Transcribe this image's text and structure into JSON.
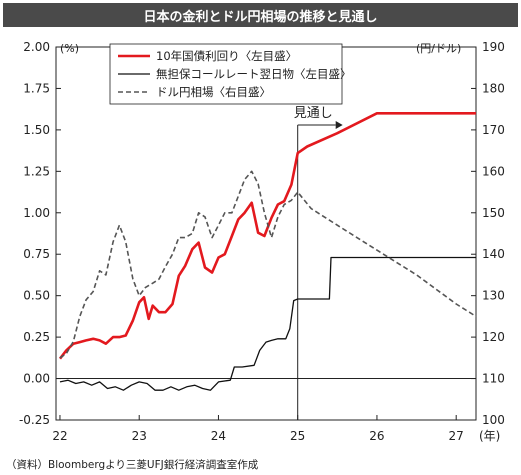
{
  "title": "日本の金利とドル円相場の推移と見通し",
  "source": "（資料）Bloombergより三菱UFJ銀行経済調査室作成",
  "chart_data": {
    "type": "line",
    "left_unit": "(%)",
    "right_unit": "(円/ドル)",
    "year_unit": "(年)",
    "forecast_label": "見通し",
    "forecast_start": 25.0,
    "xlim": [
      21.95,
      27.25
    ],
    "ylim_left": [
      -0.25,
      2.0
    ],
    "ylim_right": [
      100,
      190
    ],
    "x_ticks": [
      {
        "v": 22,
        "label": "22"
      },
      {
        "v": 23,
        "label": "23"
      },
      {
        "v": 24,
        "label": "24"
      },
      {
        "v": 25,
        "label": "25"
      },
      {
        "v": 26,
        "label": "26"
      },
      {
        "v": 27,
        "label": "27"
      }
    ],
    "y_left_ticks": [
      {
        "v": -0.25,
        "label": "-0.25"
      },
      {
        "v": 0,
        "label": "0.00"
      },
      {
        "v": 0.25,
        "label": "0.25"
      },
      {
        "v": 0.5,
        "label": "0.50"
      },
      {
        "v": 0.75,
        "label": "0.75"
      },
      {
        "v": 1.0,
        "label": "1.00"
      },
      {
        "v": 1.25,
        "label": "1.25"
      },
      {
        "v": 1.5,
        "label": "1.50"
      },
      {
        "v": 1.75,
        "label": "1.75"
      },
      {
        "v": 2.0,
        "label": "2.00"
      }
    ],
    "y_right_ticks": [
      {
        "v": 100,
        "label": "100"
      },
      {
        "v": 110,
        "label": "110"
      },
      {
        "v": 120,
        "label": "120"
      },
      {
        "v": 130,
        "label": "130"
      },
      {
        "v": 140,
        "label": "140"
      },
      {
        "v": 150,
        "label": "150"
      },
      {
        "v": 160,
        "label": "160"
      },
      {
        "v": 170,
        "label": "170"
      },
      {
        "v": 180,
        "label": "180"
      },
      {
        "v": 190,
        "label": "190"
      }
    ],
    "series": [
      {
        "name": "10年国債利回り〈左目盛〉",
        "axis": "left",
        "color": "#e3191e",
        "style": "solid-thick",
        "points": [
          [
            22.0,
            0.12
          ],
          [
            22.08,
            0.17
          ],
          [
            22.17,
            0.21
          ],
          [
            22.25,
            0.22
          ],
          [
            22.33,
            0.23
          ],
          [
            22.42,
            0.24
          ],
          [
            22.5,
            0.23
          ],
          [
            22.58,
            0.21
          ],
          [
            22.67,
            0.25
          ],
          [
            22.75,
            0.25
          ],
          [
            22.83,
            0.26
          ],
          [
            22.92,
            0.35
          ],
          [
            23.0,
            0.46
          ],
          [
            23.06,
            0.49
          ],
          [
            23.12,
            0.36
          ],
          [
            23.17,
            0.44
          ],
          [
            23.25,
            0.4
          ],
          [
            23.33,
            0.4
          ],
          [
            23.42,
            0.45
          ],
          [
            23.5,
            0.62
          ],
          [
            23.58,
            0.68
          ],
          [
            23.67,
            0.78
          ],
          [
            23.75,
            0.82
          ],
          [
            23.83,
            0.67
          ],
          [
            23.92,
            0.64
          ],
          [
            24.0,
            0.73
          ],
          [
            24.08,
            0.75
          ],
          [
            24.17,
            0.86
          ],
          [
            24.25,
            0.96
          ],
          [
            24.33,
            1.0
          ],
          [
            24.42,
            1.06
          ],
          [
            24.5,
            0.88
          ],
          [
            24.58,
            0.86
          ],
          [
            24.67,
            0.97
          ],
          [
            24.75,
            1.05
          ],
          [
            24.83,
            1.07
          ],
          [
            24.92,
            1.17
          ],
          [
            25.0,
            1.36
          ],
          [
            25.12,
            1.4
          ],
          [
            25.5,
            1.48
          ],
          [
            26.0,
            1.6
          ],
          [
            27.25,
            1.6
          ]
        ]
      },
      {
        "name": "無担保コールレート翌日物〈左目盛〉",
        "axis": "left",
        "color": "#111111",
        "style": "solid-thin",
        "points": [
          [
            22.0,
            -0.02
          ],
          [
            22.1,
            -0.01
          ],
          [
            22.2,
            -0.03
          ],
          [
            22.3,
            -0.02
          ],
          [
            22.4,
            -0.04
          ],
          [
            22.5,
            -0.02
          ],
          [
            22.6,
            -0.06
          ],
          [
            22.7,
            -0.05
          ],
          [
            22.8,
            -0.07
          ],
          [
            22.9,
            -0.04
          ],
          [
            23.0,
            -0.02
          ],
          [
            23.1,
            -0.03
          ],
          [
            23.2,
            -0.07
          ],
          [
            23.3,
            -0.07
          ],
          [
            23.4,
            -0.05
          ],
          [
            23.5,
            -0.07
          ],
          [
            23.6,
            -0.05
          ],
          [
            23.7,
            -0.04
          ],
          [
            23.8,
            -0.06
          ],
          [
            23.9,
            -0.07
          ],
          [
            24.0,
            -0.02
          ],
          [
            24.15,
            -0.01
          ],
          [
            24.2,
            0.07
          ],
          [
            24.3,
            0.07
          ],
          [
            24.45,
            0.08
          ],
          [
            24.52,
            0.17
          ],
          [
            24.6,
            0.22
          ],
          [
            24.67,
            0.23
          ],
          [
            24.75,
            0.24
          ],
          [
            24.85,
            0.24
          ],
          [
            24.9,
            0.3
          ],
          [
            24.95,
            0.47
          ],
          [
            25.0,
            0.48
          ],
          [
            25.4,
            0.48
          ],
          [
            25.42,
            0.73
          ],
          [
            27.25,
            0.73
          ]
        ]
      },
      {
        "name": "ドル円相場〈右目盛〉",
        "axis": "right",
        "color": "#555555",
        "style": "dashed",
        "points": [
          [
            22.0,
            115
          ],
          [
            22.08,
            116
          ],
          [
            22.17,
            119
          ],
          [
            22.25,
            125
          ],
          [
            22.33,
            129
          ],
          [
            22.42,
            131
          ],
          [
            22.5,
            136
          ],
          [
            22.58,
            135
          ],
          [
            22.67,
            143
          ],
          [
            22.75,
            147
          ],
          [
            22.83,
            143
          ],
          [
            22.92,
            134
          ],
          [
            23.0,
            130
          ],
          [
            23.08,
            132
          ],
          [
            23.17,
            133
          ],
          [
            23.25,
            134
          ],
          [
            23.33,
            137
          ],
          [
            23.42,
            140
          ],
          [
            23.5,
            144
          ],
          [
            23.58,
            144
          ],
          [
            23.67,
            145
          ],
          [
            23.75,
            150
          ],
          [
            23.83,
            149
          ],
          [
            23.92,
            144
          ],
          [
            24.0,
            147
          ],
          [
            24.08,
            150
          ],
          [
            24.17,
            150
          ],
          [
            24.25,
            154
          ],
          [
            24.33,
            158
          ],
          [
            24.42,
            160
          ],
          [
            24.5,
            157
          ],
          [
            24.58,
            150
          ],
          [
            24.67,
            144
          ],
          [
            24.75,
            149
          ],
          [
            24.83,
            152
          ],
          [
            24.92,
            153
          ],
          [
            25.0,
            155
          ],
          [
            25.17,
            151
          ],
          [
            25.5,
            147
          ],
          [
            26.0,
            141
          ],
          [
            26.5,
            135
          ],
          [
            27.0,
            128
          ],
          [
            27.25,
            125
          ]
        ]
      }
    ]
  }
}
